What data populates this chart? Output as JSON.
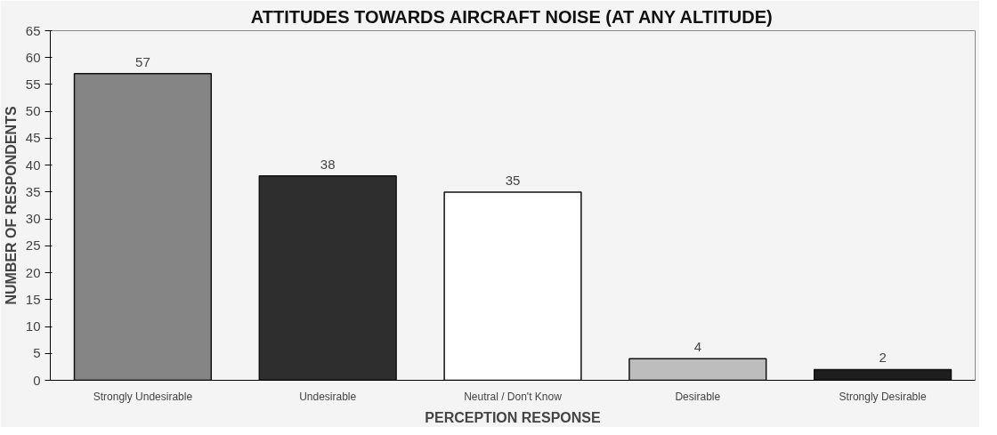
{
  "chart_data": {
    "type": "bar",
    "title": "ATTITUDES TOWARDS AIRCRAFT NOISE (AT ANY ALTITUDE)",
    "xlabel": "PERCEPTION RESPONSE",
    "ylabel": "NUMBER OF RESPONDENTS",
    "categories": [
      "Strongly Undesirable",
      "Undesirable",
      "Neutral / Don't Know",
      "Desirable",
      "Strongly Desirable"
    ],
    "values": [
      57,
      38,
      35,
      4,
      2
    ],
    "colors": [
      "#858585",
      "#2e2e2e",
      "#ffffff",
      "#bdbdbd",
      "#1e1e1e"
    ],
    "ylim": [
      0,
      65
    ],
    "yticks": [
      0,
      5,
      10,
      15,
      20,
      25,
      30,
      35,
      40,
      45,
      50,
      55,
      60,
      65
    ],
    "data_labels": true,
    "grid": false
  }
}
